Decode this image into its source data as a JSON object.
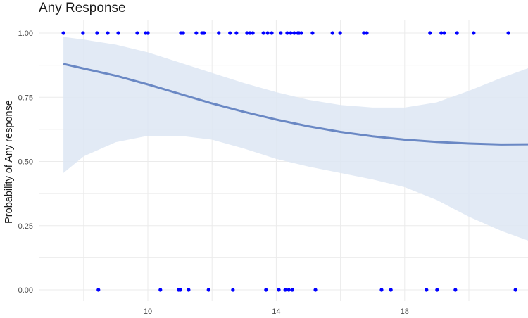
{
  "chart_data": {
    "type": "scatter",
    "title": "Any Response",
    "xlabel": "",
    "ylabel": "Probability of Any response",
    "xlim": [
      7.0,
      23.2
    ],
    "ylim": [
      -0.04,
      1.04
    ],
    "x_ticks": [
      10,
      14,
      18
    ],
    "y_ticks": [
      "0.00",
      "0.25",
      "0.50",
      "0.75",
      "1.00"
    ],
    "y_tick_values": [
      0,
      0.25,
      0.5,
      0.75,
      1.0
    ],
    "grid": true,
    "colors": {
      "points": "#0000ff",
      "fit_line": "#6a88c4",
      "ribbon": "#dde6f3",
      "grid": "#ebebeb"
    },
    "series": [
      {
        "name": "observed_1",
        "y": 1,
        "x": [
          7.37,
          7.98,
          8.42,
          8.75,
          9.08,
          9.67,
          9.93,
          10.0,
          11.03,
          11.1,
          11.51,
          11.69,
          11.75,
          12.21,
          12.56,
          12.76,
          13.09,
          13.18,
          13.27,
          13.6,
          13.73,
          13.86,
          14.14,
          14.34,
          14.45,
          14.56,
          14.67,
          14.71,
          14.78,
          15.13,
          15.75,
          15.99,
          16.73,
          16.82,
          18.79,
          19.14,
          19.23,
          19.63,
          20.15,
          21.23
        ]
      },
      {
        "name": "observed_0",
        "y": 0,
        "x": [
          8.46,
          10.39,
          10.96,
          11.01,
          11.27,
          11.89,
          12.65,
          13.68,
          14.08,
          14.28,
          14.39,
          14.5,
          15.22,
          17.28,
          17.57,
          18.68,
          19.01,
          19.58,
          21.45
        ]
      },
      {
        "name": "logistic_fit",
        "type": "line",
        "x": [
          7.37,
          8,
          9,
          10,
          11,
          12,
          13,
          14,
          15,
          16,
          17,
          18,
          19,
          20,
          21,
          22,
          22.54
        ],
        "y": [
          0.88,
          0.862,
          0.834,
          0.8,
          0.763,
          0.726,
          0.693,
          0.663,
          0.637,
          0.615,
          0.598,
          0.585,
          0.576,
          0.57,
          0.566,
          0.567,
          0.568
        ]
      },
      {
        "name": "confidence_band",
        "type": "area",
        "x": [
          7.37,
          8,
          9,
          10,
          11,
          12,
          13,
          14,
          15,
          16,
          17,
          18,
          19,
          20,
          21,
          22,
          22.54
        ],
        "upper": [
          0.985,
          0.975,
          0.955,
          0.925,
          0.885,
          0.845,
          0.805,
          0.77,
          0.74,
          0.72,
          0.71,
          0.71,
          0.73,
          0.775,
          0.825,
          0.87,
          0.895
        ],
        "lower": [
          0.455,
          0.52,
          0.575,
          0.6,
          0.6,
          0.585,
          0.55,
          0.51,
          0.48,
          0.455,
          0.43,
          0.4,
          0.35,
          0.285,
          0.23,
          0.185,
          0.17
        ]
      }
    ]
  }
}
